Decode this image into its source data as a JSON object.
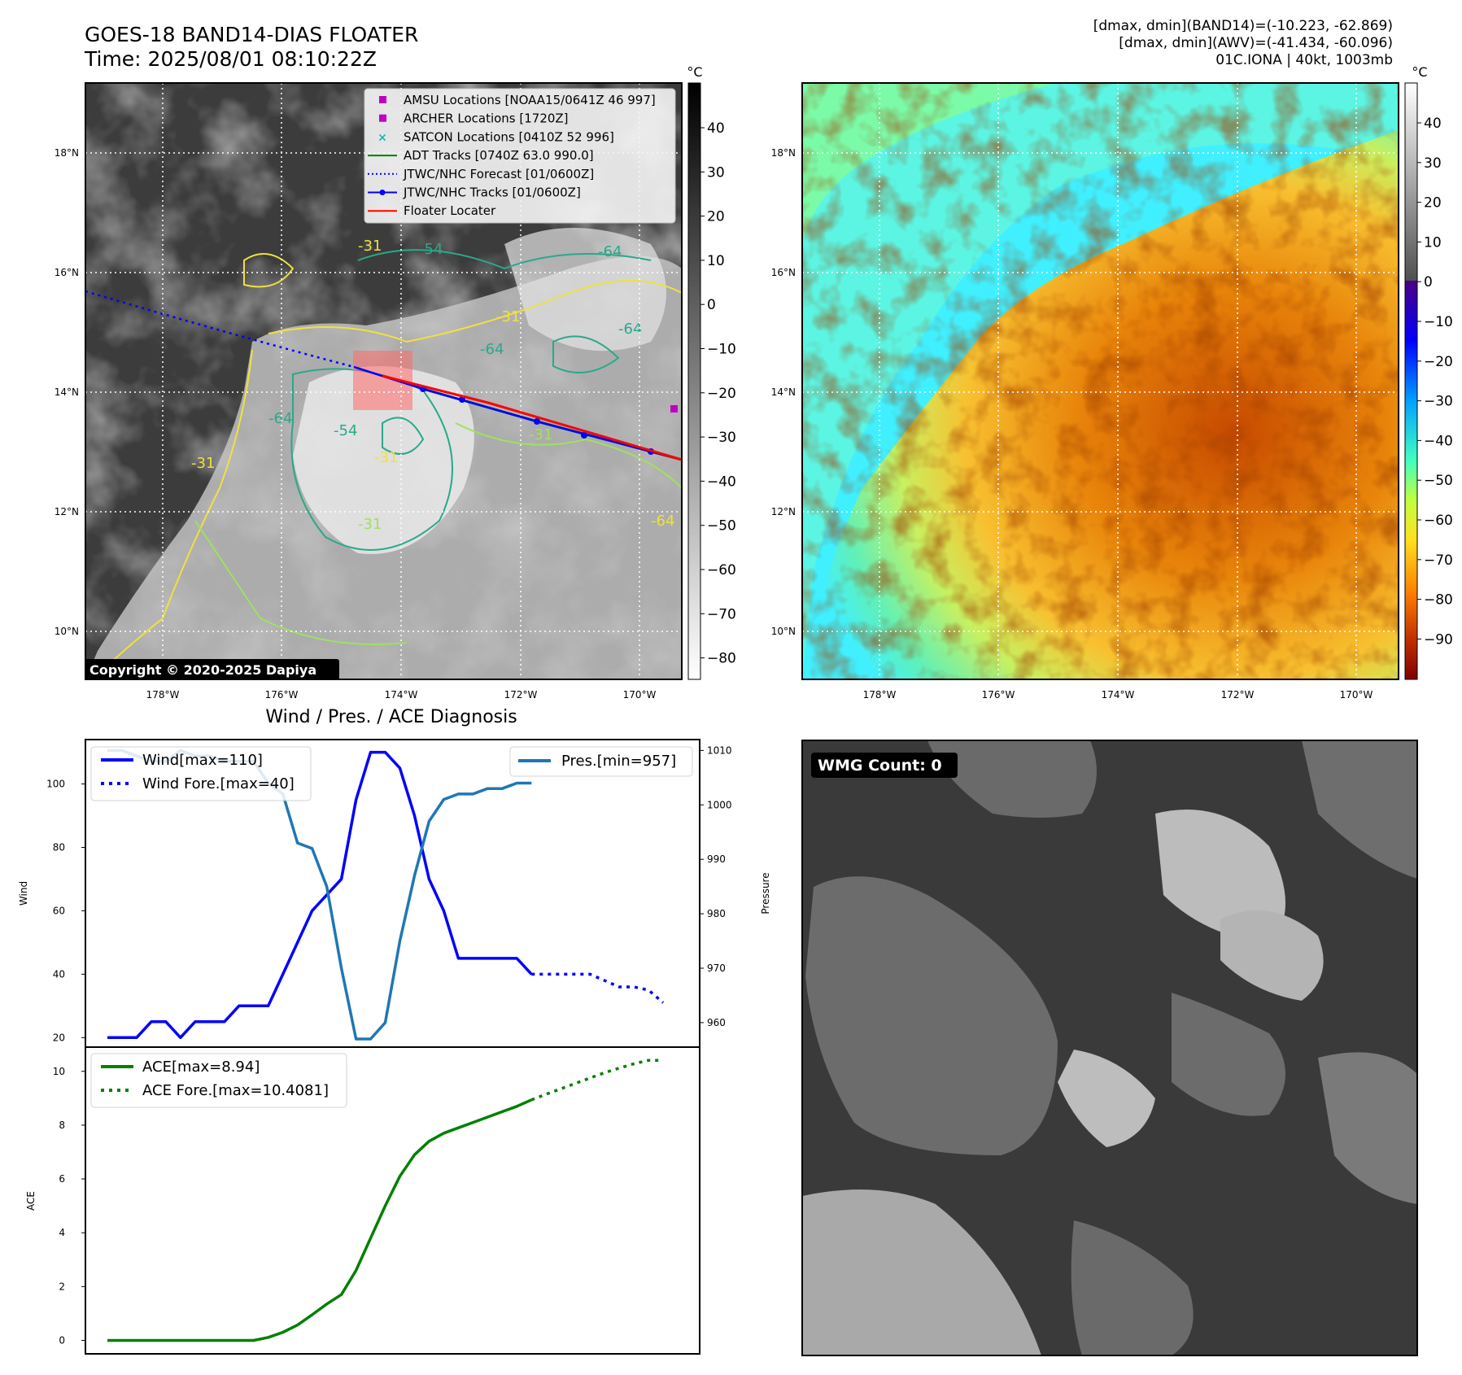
{
  "header": {
    "title_line1": "GOES-18 BAND14-DIAS FLOATER",
    "title_line2": "Time: 2025/08/01 08:10:22Z",
    "info_line1": "[dmax, dmin](BAND14)=(-10.223, -62.869)",
    "info_line2": "[dmax, dmin](AWV)=(-41.434, -60.096)",
    "info_line3": "01C.IONA | 40kt, 1003mb"
  },
  "map": {
    "lat_labels": [
      "18°N",
      "16°N",
      "14°N",
      "12°N",
      "10°N"
    ],
    "lon_labels": [
      "178°W",
      "176°W",
      "174°W",
      "172°W",
      "170°W"
    ],
    "copyright": "Copyright © 2020-2025 Dapiya",
    "legend": [
      {
        "label": "AMSU Locations [NOAA15/0641Z 46 997]",
        "marker": "square",
        "color": "#c000c0"
      },
      {
        "label": "ARCHER Locations [1720Z]",
        "marker": "square",
        "color": "#c000c0"
      },
      {
        "label": "SATCON Locations [0410Z 52 996]",
        "marker": "x",
        "color": "#1fb5b5"
      },
      {
        "label": "ADT Tracks [0740Z 63.0 990.0]",
        "marker": "line",
        "color": "#008000"
      },
      {
        "label": "JTWC/NHC Forecast [01/0600Z]",
        "marker": "dotted",
        "color": "#0000ff"
      },
      {
        "label": "JTWC/NHC Tracks [01/0600Z]",
        "marker": "line-dot",
        "color": "#0000ff"
      },
      {
        "label": "Floater Locater",
        "marker": "line",
        "color": "#ff0000"
      }
    ],
    "contour_labels": [
      "-64",
      "-54",
      "-31",
      "-64",
      "-64",
      "-31",
      "-31",
      "-64",
      "-54",
      "-31",
      "-31",
      "-31",
      "-64"
    ],
    "colorbar_unit": "°C",
    "colorbar_ticks": [
      "40",
      "30",
      "20",
      "10",
      "0",
      "−10",
      "−20",
      "−30",
      "−40",
      "−50",
      "−60",
      "−70",
      "−80"
    ]
  },
  "awv": {
    "lat_labels": [
      "18°N",
      "16°N",
      "14°N",
      "12°N",
      "10°N"
    ],
    "lon_labels": [
      "178°W",
      "176°W",
      "174°W",
      "172°W",
      "170°W"
    ],
    "colorbar_unit": "°C",
    "colorbar_ticks": [
      "40",
      "30",
      "20",
      "10",
      "0",
      "−10",
      "−20",
      "−30",
      "−40",
      "−50",
      "−60",
      "−70",
      "−80",
      "−90"
    ]
  },
  "wmg": {
    "count_label": "WMG Count: 0"
  },
  "chart_data": [
    {
      "type": "line",
      "title": "Wind / Pres. / ACE Diagnosis",
      "ylabel": "Wind",
      "y2label": "Pressure",
      "ylim": [
        17,
        114
      ],
      "y2lim": [
        955.5,
        1012
      ],
      "yticks": [
        "100",
        "80",
        "60",
        "40",
        "20"
      ],
      "y2ticks": [
        "1010",
        "1000",
        "990",
        "980",
        "970",
        "960"
      ],
      "series": [
        {
          "name": "Wind[max=110]",
          "axis": "left",
          "color": "#0000ff",
          "style": "solid",
          "x": [
            0,
            1,
            2,
            3,
            4,
            5,
            6,
            7,
            8,
            9,
            10,
            11,
            12,
            13,
            14,
            15,
            16,
            17,
            18,
            19,
            20,
            21,
            22,
            23,
            24,
            25,
            26,
            27,
            28,
            29
          ],
          "values": [
            20,
            20,
            20,
            25,
            25,
            20,
            25,
            25,
            25,
            30,
            30,
            30,
            40,
            50,
            60,
            65,
            70,
            95,
            110,
            110,
            105,
            90,
            70,
            60,
            45,
            45,
            45,
            45,
            45,
            40
          ]
        },
        {
          "name": "Wind Fore.[max=40]",
          "axis": "left",
          "color": "#0000ff",
          "style": "dotted",
          "x": [
            29,
            30,
            31,
            32,
            33,
            34,
            35,
            36,
            37,
            38
          ],
          "values": [
            40,
            40,
            40,
            40,
            40,
            38,
            36,
            36,
            35,
            31
          ]
        },
        {
          "name": "Pres.[min=957]",
          "axis": "right",
          "color": "#1f77b4",
          "style": "solid",
          "x": [
            0,
            1,
            2,
            3,
            4,
            5,
            6,
            7,
            8,
            9,
            10,
            11,
            12,
            13,
            14,
            15,
            16,
            17,
            18,
            19,
            20,
            21,
            22,
            23,
            24,
            25,
            26,
            27,
            28,
            29
          ],
          "values": [
            1010,
            1010,
            1009,
            1008,
            1008,
            1010,
            1009,
            1009,
            1008,
            1008,
            1008,
            1004,
            1002,
            993,
            992,
            985,
            970,
            957,
            957,
            960,
            975,
            987,
            997,
            1001,
            1002,
            1002,
            1003,
            1003,
            1004,
            1004
          ]
        }
      ]
    },
    {
      "type": "line",
      "ylabel": "ACE",
      "ylim": [
        -0.5,
        10.9
      ],
      "yticks": [
        "10",
        "8",
        "6",
        "4",
        "2",
        "0"
      ],
      "series": [
        {
          "name": "ACE[max=8.94]",
          "color": "#008000",
          "style": "solid",
          "x": [
            0,
            1,
            2,
            3,
            4,
            5,
            6,
            7,
            8,
            9,
            10,
            11,
            12,
            13,
            14,
            15,
            16,
            17,
            18,
            19,
            20,
            21,
            22,
            23,
            24,
            25,
            26,
            27,
            28,
            29
          ],
          "values": [
            0,
            0,
            0,
            0,
            0,
            0,
            0,
            0,
            0,
            0,
            0,
            0.11,
            0.3,
            0.57,
            0.95,
            1.35,
            1.7,
            2.6,
            3.8,
            5.0,
            6.1,
            6.9,
            7.4,
            7.7,
            7.9,
            8.1,
            8.3,
            8.5,
            8.7,
            8.94
          ]
        },
        {
          "name": "ACE Fore.[max=10.4081]",
          "color": "#008000",
          "style": "dotted",
          "x": [
            29,
            30,
            31,
            32,
            33,
            34,
            35,
            36,
            37,
            38
          ],
          "values": [
            8.94,
            9.15,
            9.35,
            9.55,
            9.75,
            9.95,
            10.12,
            10.28,
            10.41,
            10.41
          ]
        }
      ]
    }
  ]
}
